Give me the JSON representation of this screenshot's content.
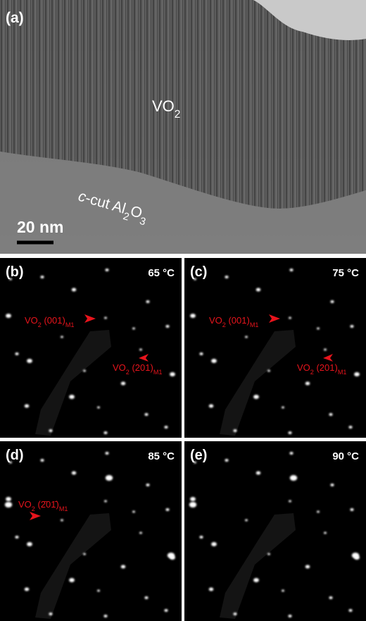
{
  "panels": [
    {
      "label": "(a)",
      "annotations": [
        {
          "parts": [
            {
              "text": "VO"
            },
            {
              "text": "2",
              "sub": true
            }
          ]
        },
        {
          "parts": [
            {
              "text": "c",
              "italic": true
            },
            {
              "text": "-cut Al"
            },
            {
              "text": "2",
              "sub": true
            },
            {
              "text": "O"
            },
            {
              "text": "3",
              "sub": true
            }
          ]
        }
      ],
      "scale_bar": "20 nm"
    },
    {
      "label": "(b)",
      "temperature": "65 °C",
      "annotations": [
        {
          "parts": [
            {
              "text": "VO"
            },
            {
              "text": "2",
              "sub": true
            },
            {
              "text": " (001)"
            },
            {
              "text": "M1",
              "sub": true
            }
          ]
        },
        {
          "parts": [
            {
              "text": "VO"
            },
            {
              "text": "2",
              "sub": true
            },
            {
              "text": " (201)"
            },
            {
              "text": "M1",
              "sub": true
            }
          ]
        }
      ]
    },
    {
      "label": "(c)",
      "temperature": "75 °C",
      "annotations": [
        {
          "parts": [
            {
              "text": "VO"
            },
            {
              "text": "2",
              "sub": true
            },
            {
              "text": " (001)"
            },
            {
              "text": "M1",
              "sub": true
            }
          ]
        },
        {
          "parts": [
            {
              "text": "VO"
            },
            {
              "text": "2",
              "sub": true
            },
            {
              "text": " (201)"
            },
            {
              "text": "M1",
              "sub": true
            }
          ]
        }
      ]
    },
    {
      "label": "(d)",
      "temperature": "85 °C",
      "annotations": [
        {
          "parts": [
            {
              "text": "VO"
            },
            {
              "text": "2",
              "sub": true
            },
            {
              "text": " (2̄01̄)"
            },
            {
              "text": "M1",
              "sub": true
            }
          ]
        }
      ]
    },
    {
      "label": "(e)",
      "temperature": "90 °C",
      "annotations": []
    }
  ]
}
